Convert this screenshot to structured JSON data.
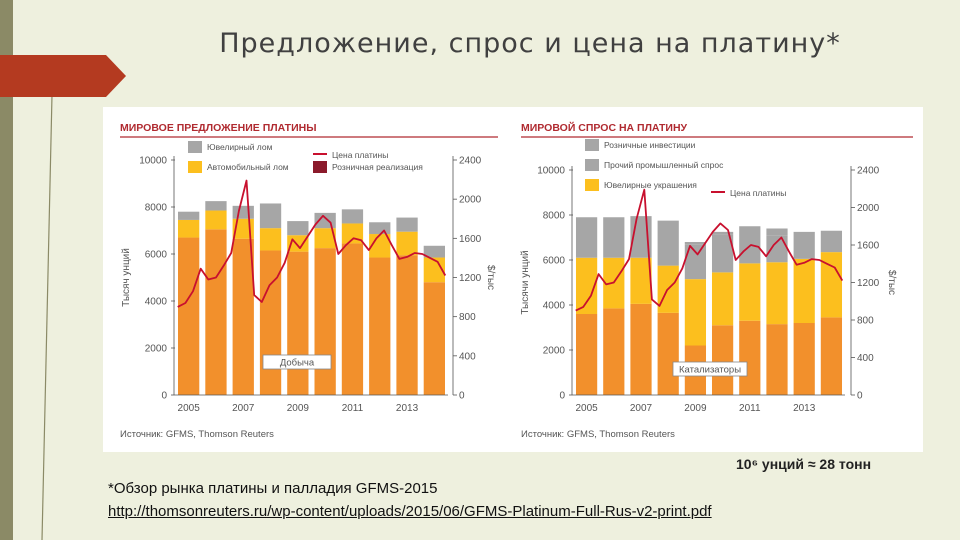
{
  "slide": {
    "title": "Предложение, спрос и цена на платину*",
    "conversion": "10⁶ унций ≈ 28 тонн",
    "footnote": "*Обзор рынка платины и палладия GFMS-2015",
    "link": "http://thomsonreuters.ru/wp-content/uploads/2015/06/GFMS-Platinum-Full-Rus-v2-print.pdf"
  },
  "colors": {
    "orange": "#f2902c",
    "yellow": "#fcbf1e",
    "gray": "#a6a6a6",
    "price": "#c8102e",
    "retail": "#8b1a2b",
    "header": "#b02a30",
    "axis": "#555555"
  },
  "chart_data": [
    {
      "type": "bar",
      "title": "МИРОВОЕ ПРЕДЛОЖЕНИЕ ПЛАТИНЫ",
      "ylabel": "Тысяч унций",
      "y2label": "$/тыс",
      "ylim": [
        0,
        10000
      ],
      "y2lim": [
        0,
        2400
      ],
      "yticks": [
        "0",
        "2000",
        "4000",
        "6000",
        "8000",
        "10000"
      ],
      "y2ticks": [
        "0",
        "400",
        "800",
        "1200",
        "1600",
        "2000",
        "2400"
      ],
      "xticks": [
        "2005",
        "2007",
        "2009",
        "2011",
        "2013"
      ],
      "categories": [
        "2005",
        "2006",
        "2007",
        "2008",
        "2009",
        "2010",
        "2011",
        "2012",
        "2013",
        "2014"
      ],
      "series": [
        {
          "name": "Добыча",
          "values": [
            6700,
            7050,
            6650,
            6150,
            6100,
            6250,
            6450,
            5850,
            5950,
            4800
          ]
        },
        {
          "name": "Автомобильный лом",
          "values": [
            750,
            800,
            850,
            950,
            700,
            850,
            850,
            1000,
            1000,
            1050
          ]
        },
        {
          "name": "Ювелирный лом",
          "values": [
            350,
            400,
            550,
            1050,
            600,
            650,
            600,
            500,
            600,
            500
          ]
        }
      ],
      "price": {
        "name": "Цена платины",
        "values": [
          900,
          940,
          1060,
          1290,
          1180,
          1200,
          1320,
          1450,
          1880,
          2190,
          1020,
          950,
          1120,
          1200,
          1350,
          1590,
          1500,
          1620,
          1740,
          1830,
          1760,
          1440,
          1530,
          1600,
          1580,
          1480,
          1600,
          1680,
          1530,
          1390,
          1410,
          1450,
          1440,
          1400,
          1360,
          1220
        ]
      },
      "legend": [
        "Ювелирный лом",
        "Автомобильный лом",
        "Цена платины",
        "Розничная реализация"
      ],
      "annotation": "Добыча",
      "source": "Источник: GFMS, Thomson Reuters"
    },
    {
      "type": "bar",
      "title": "МИРОВОЙ СПРОС НА ПЛАТИНУ",
      "ylabel": "Тысячи унций",
      "y2label": "$/тыс",
      "ylim": [
        0,
        10000
      ],
      "y2lim": [
        0,
        2400
      ],
      "yticks": [
        "0",
        "2000",
        "4000",
        "6000",
        "8000",
        "10000"
      ],
      "y2ticks": [
        "0",
        "400",
        "800",
        "1200",
        "1600",
        "2000",
        "2400"
      ],
      "xticks": [
        "2005",
        "2007",
        "2009",
        "2011",
        "2013"
      ],
      "categories": [
        "2005",
        "2006",
        "2007",
        "2008",
        "2009",
        "2010",
        "2011",
        "2012",
        "2013",
        "2014"
      ],
      "series": [
        {
          "name": "Катализаторы",
          "values": [
            3600,
            3850,
            4050,
            3650,
            2200,
            3100,
            3300,
            3150,
            3200,
            3450
          ]
        },
        {
          "name": "Ювелирные украшения",
          "values": [
            2500,
            2250,
            2050,
            2100,
            2950,
            2350,
            2550,
            2750,
            2850,
            2900
          ]
        },
        {
          "name": "Прочий промышленный спрос",
          "values": [
            1800,
            1800,
            1850,
            1450,
            1550,
            1700,
            1650,
            1200,
            1200,
            950
          ]
        },
        {
          "name": "Розничные инвестиции",
          "values": [
            0,
            0,
            0,
            550,
            100,
            100,
            0,
            300,
            0,
            0
          ]
        }
      ],
      "price": {
        "name": "Цена платины",
        "values": [
          900,
          940,
          1060,
          1290,
          1180,
          1200,
          1320,
          1450,
          1880,
          2190,
          1020,
          950,
          1120,
          1200,
          1350,
          1590,
          1500,
          1620,
          1740,
          1830,
          1760,
          1440,
          1530,
          1600,
          1580,
          1480,
          1600,
          1680,
          1530,
          1390,
          1410,
          1450,
          1440,
          1400,
          1360,
          1220
        ]
      },
      "legend": [
        "Розничные инвестиции",
        "Прочий промышленный спрос",
        "Ювелирные украшения",
        "Цена платины"
      ],
      "annotation": "Катализаторы",
      "source": "Источник: GFMS, Thomson Reuters"
    }
  ]
}
